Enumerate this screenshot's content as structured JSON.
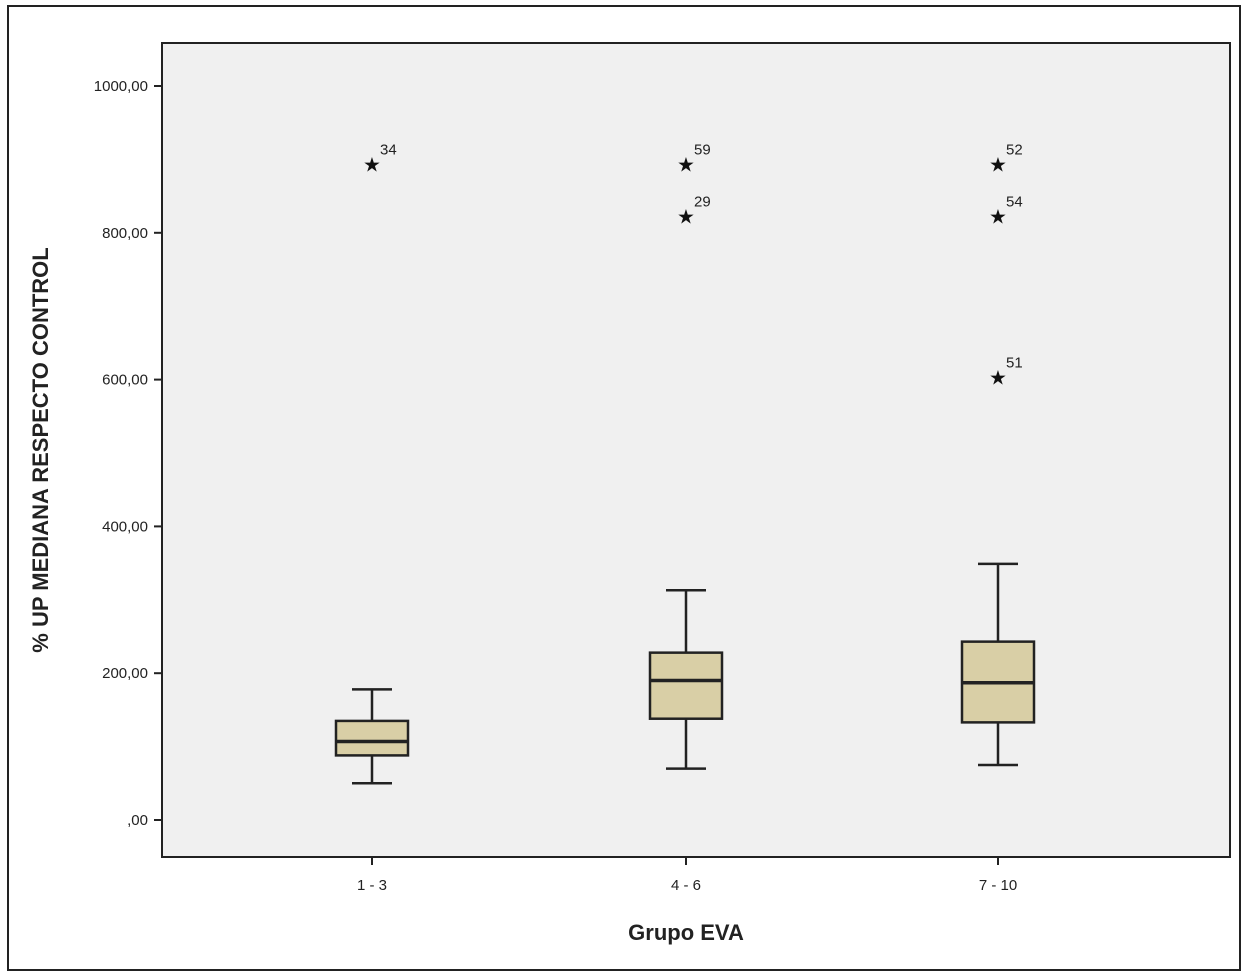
{
  "chart_data": {
    "type": "boxplot",
    "xlabel": "Grupo EVA",
    "ylabel": "% UP MEDIANA RESPECTO CONTROL",
    "ylim": [
      -50,
      1060
    ],
    "yticks": [
      {
        "value": 0,
        "label": ",00"
      },
      {
        "value": 200,
        "label": "200,00"
      },
      {
        "value": 400,
        "label": "400,00"
      },
      {
        "value": 600,
        "label": "600,00"
      },
      {
        "value": 800,
        "label": "800,00"
      },
      {
        "value": 1000,
        "label": "1000,00"
      }
    ],
    "categories": [
      "1 - 3",
      "4 - 6",
      "7 - 10"
    ],
    "boxes": [
      {
        "category": "1 - 3",
        "min": 50,
        "q1": 88,
        "median": 107,
        "q3": 135,
        "max": 178,
        "outliers": [
          {
            "value": 893,
            "label": "34"
          }
        ]
      },
      {
        "category": "4 - 6",
        "min": 70,
        "q1": 138,
        "median": 190,
        "q3": 228,
        "max": 313,
        "outliers": [
          {
            "value": 893,
            "label": "59"
          },
          {
            "value": 822,
            "label": "29"
          }
        ]
      },
      {
        "category": "7 - 10",
        "min": 75,
        "q1": 133,
        "median": 187,
        "q3": 243,
        "max": 349,
        "outliers": [
          {
            "value": 893,
            "label": "52"
          },
          {
            "value": 822,
            "label": "54"
          },
          {
            "value": 603,
            "label": "51"
          }
        ]
      }
    ],
    "grid": false,
    "colors": {
      "box_fill": "#d9cfa6",
      "plot_bg": "#f0f0f0",
      "stroke": "#222222"
    }
  }
}
